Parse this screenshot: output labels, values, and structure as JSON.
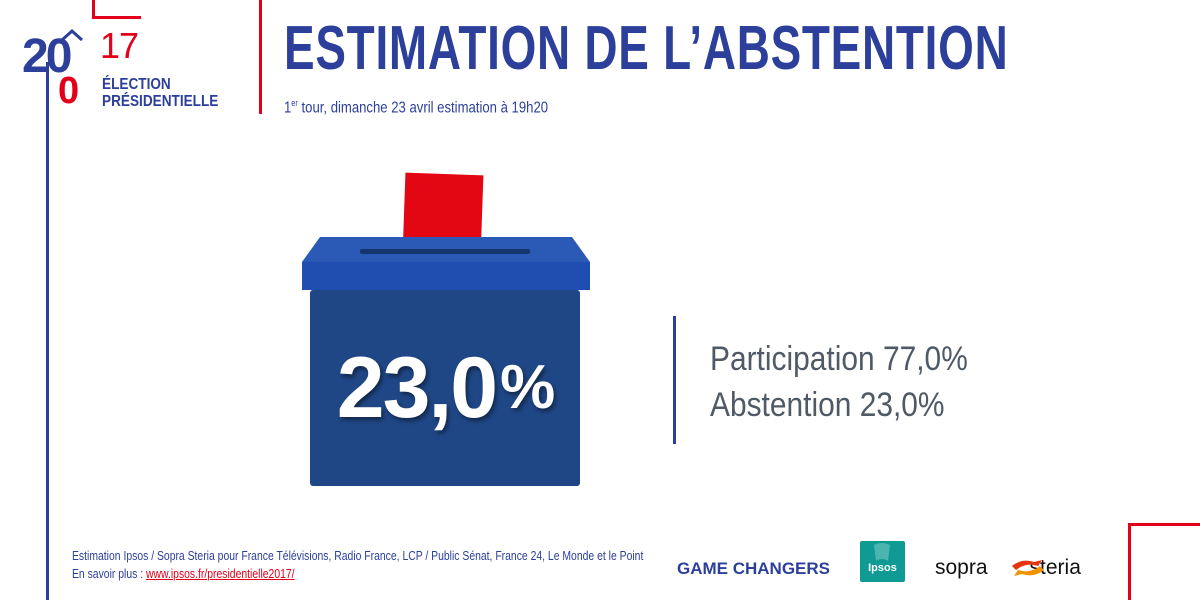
{
  "logo": {
    "year_part1": "20",
    "year_part2": "0",
    "year_part3": "17",
    "line1": "ÉLECTION",
    "line2": "PRÉSIDENTIELLE"
  },
  "header": {
    "title": "ESTIMATION DE L’ABSTENTION",
    "subtitle_ordinal": "1",
    "subtitle_sup": "er",
    "subtitle_rest": " tour, dimanche 23 avril estimation à 19h20"
  },
  "ballot": {
    "value": "23,0",
    "unit": "%"
  },
  "results": {
    "participation": "Participation 77,0%",
    "abstention": "Abstention 23,0%"
  },
  "footer": {
    "source": "Estimation Ipsos / Sopra Steria pour France Télévisions, Radio France, LCP / Public Sénat, France 24, Le Monde et le Point",
    "more_label": "En savoir plus :",
    "more_link": "www.ipsos.fr/presidentielle2017/"
  },
  "partners": {
    "game_changers": "GAME CHANGERS",
    "ipsos": "Ipsos",
    "sopra": "sopra",
    "steria": "steria"
  },
  "colors": {
    "brand_blue": "#2b3f9b",
    "brand_red": "#e2001a",
    "box_blue": "#1f4786"
  }
}
